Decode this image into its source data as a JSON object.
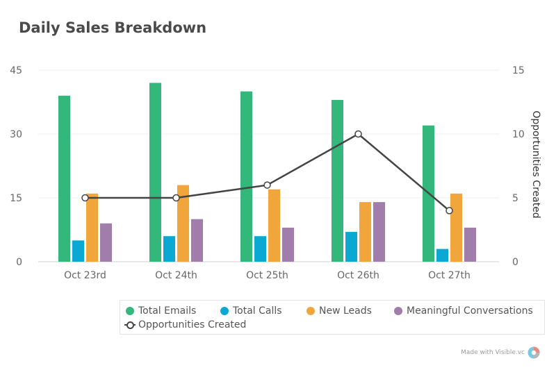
{
  "chart_data": {
    "type": "bar",
    "title": "Daily Sales Breakdown",
    "categories": [
      "Oct 23rd",
      "Oct 24th",
      "Oct 25th",
      "Oct 26th",
      "Oct 27th"
    ],
    "series": [
      {
        "name": "Total Emails",
        "type": "bar",
        "axis": "left",
        "color": "#34b77b",
        "values": [
          39,
          42,
          40,
          38,
          32
        ]
      },
      {
        "name": "Total Calls",
        "type": "bar",
        "axis": "left",
        "color": "#0aa8d2",
        "values": [
          5,
          6,
          6,
          7,
          3
        ]
      },
      {
        "name": "New Leads",
        "type": "bar",
        "axis": "left",
        "color": "#f0a63a",
        "values": [
          16,
          18,
          17,
          14,
          16
        ]
      },
      {
        "name": "Meaningful Conversations",
        "type": "bar",
        "axis": "left",
        "color": "#a07daa",
        "values": [
          9,
          10,
          8,
          14,
          8
        ]
      },
      {
        "name": "Opportunities Created",
        "type": "line",
        "axis": "right",
        "color": "#444444",
        "values": [
          5,
          5,
          6,
          10,
          4
        ]
      }
    ],
    "y_left": {
      "label": "",
      "ylim": [
        0,
        45
      ],
      "ticks": [
        "0",
        "15",
        "30",
        "45"
      ]
    },
    "y_right": {
      "label": "Opportunities Created",
      "ylim": [
        0,
        15
      ],
      "ticks": [
        "0",
        "5",
        "10",
        "15"
      ]
    },
    "grid": true,
    "legend_position": "bottom-right"
  },
  "footer": {
    "text": "Made with Visible.vc"
  }
}
